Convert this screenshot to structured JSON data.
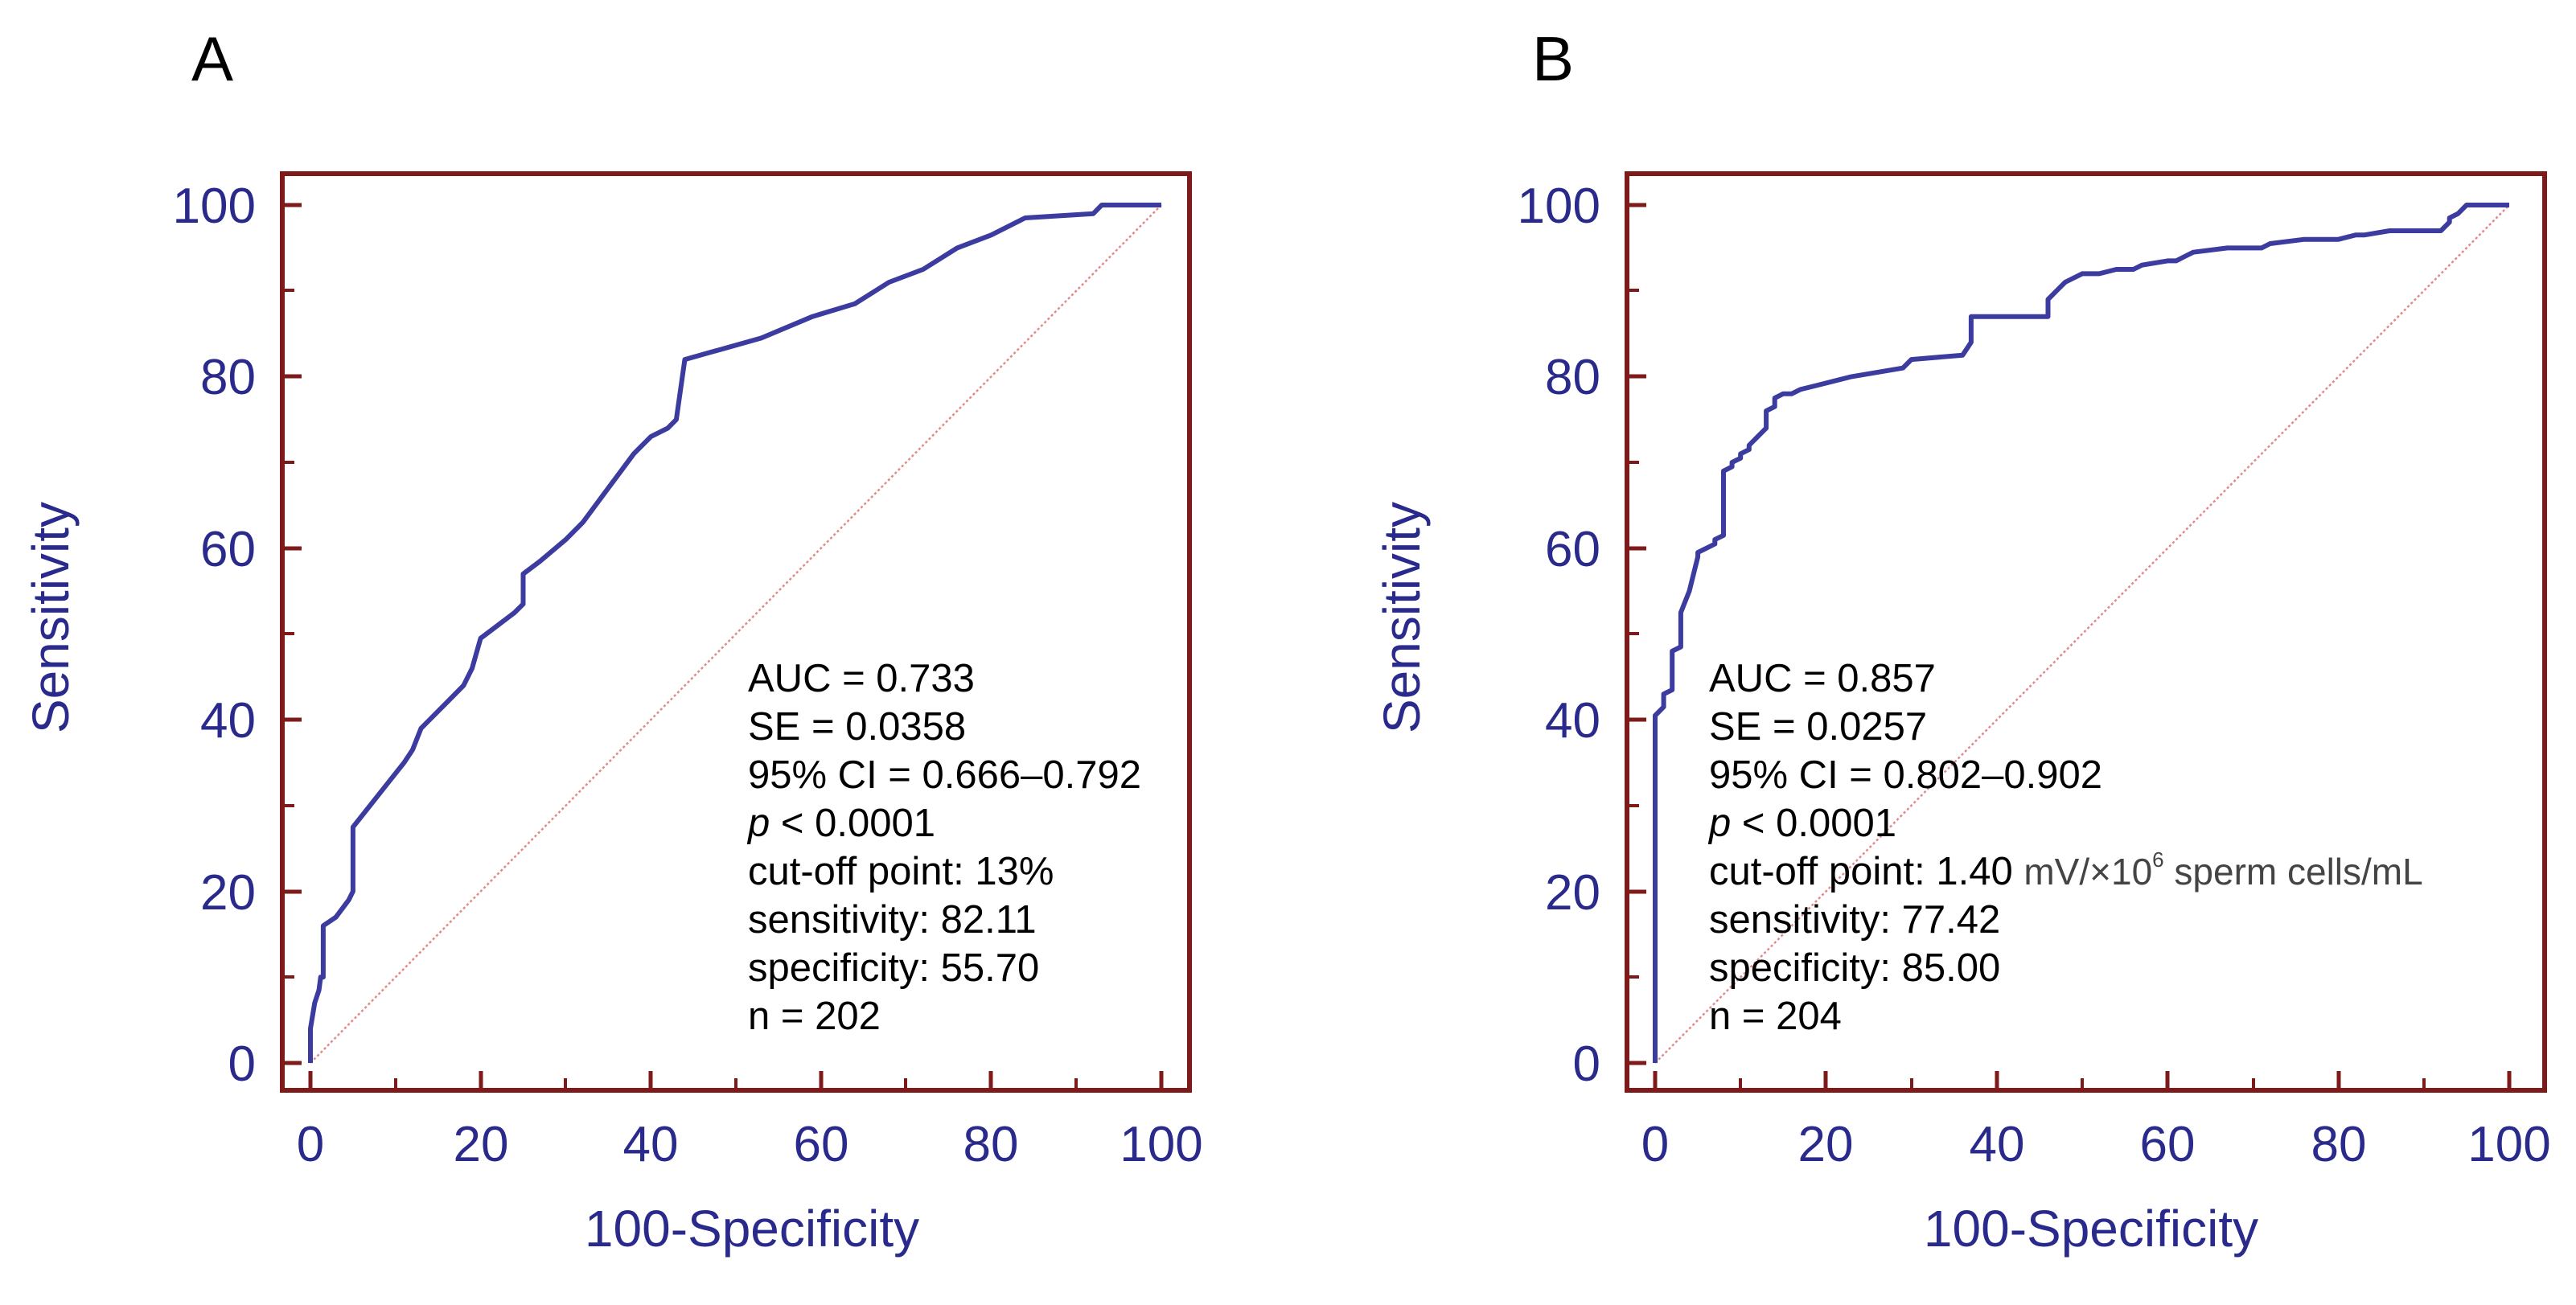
{
  "colors": {
    "frame": "#7f1a1a",
    "curve": "#3b3ba0",
    "diagonal": "#e08a8a",
    "text_axis": "#2a2a8c",
    "text_annot": "#000000"
  },
  "chart_data": [
    {
      "type": "line",
      "panel_label": "A",
      "xlabel": "100-Specificity",
      "ylabel": "Sensitivity",
      "xlim": [
        0,
        100
      ],
      "ylim": [
        0,
        100
      ],
      "xticks": [
        "0",
        "20",
        "40",
        "60",
        "80",
        "100"
      ],
      "yticks": [
        "0",
        "20",
        "40",
        "60",
        "80",
        "100"
      ],
      "series": [
        {
          "name": "ROC",
          "x": [
            0,
            0,
            0.5,
            1,
            1.2,
            1.5,
            1.5,
            3,
            4.5,
            5,
            5,
            7,
            9,
            11,
            12,
            13,
            14,
            16,
            18,
            19,
            20,
            22,
            24,
            25,
            25,
            27,
            30,
            32,
            35,
            38,
            40,
            42,
            43,
            44,
            53,
            59,
            64,
            68,
            72,
            76,
            80,
            84,
            92,
            93,
            97,
            100
          ],
          "y": [
            0,
            4,
            7,
            8.5,
            10,
            10,
            16,
            17,
            19,
            20,
            27.5,
            30,
            32.5,
            35,
            36.5,
            39,
            40,
            42,
            44,
            46,
            49.5,
            51,
            52.5,
            53.5,
            57,
            58.5,
            61,
            63,
            67,
            71,
            73,
            74,
            75,
            82,
            84.5,
            87,
            88.5,
            91,
            92.5,
            95,
            96.5,
            98.5,
            99,
            100,
            100,
            100
          ]
        },
        {
          "name": "reference",
          "x": [
            0,
            100
          ],
          "y": [
            0,
            100
          ]
        }
      ],
      "annotations": [
        "AUC = 0.733",
        "SE = 0.0358",
        "95% CI = 0.666–0.792",
        "p",
        " < 0.0001",
        "cut-off point: 13%",
        "sensitivity: 82.11",
        "specificity: 55.70",
        "n = 202"
      ]
    },
    {
      "type": "line",
      "panel_label": "B",
      "xlabel": "100-Specificity",
      "ylabel": "Sensitivity",
      "xlim": [
        0,
        100
      ],
      "ylim": [
        0,
        100
      ],
      "xticks": [
        "0",
        "20",
        "40",
        "60",
        "80",
        "100"
      ],
      "yticks": [
        "0",
        "20",
        "40",
        "60",
        "80",
        "100"
      ],
      "series": [
        {
          "name": "ROC",
          "x": [
            0,
            0,
            1,
            1,
            2,
            2,
            3,
            3,
            4,
            5,
            5,
            6,
            7,
            7,
            8,
            8,
            9,
            9,
            10,
            10,
            11,
            11,
            12,
            13,
            13,
            14,
            14,
            15,
            16,
            16,
            17,
            19,
            23,
            26,
            29,
            30,
            36,
            37,
            37,
            42,
            46,
            46,
            47,
            48,
            50,
            52,
            54,
            56,
            57,
            60,
            61,
            62,
            63,
            67,
            71,
            72,
            76,
            80,
            82,
            83,
            86,
            92,
            93,
            93,
            94,
            95,
            98,
            100
          ],
          "y": [
            0,
            40.5,
            41.5,
            43,
            43.5,
            48,
            48.5,
            52.5,
            55,
            59,
            59.5,
            60,
            60.5,
            61,
            61.5,
            69,
            69.5,
            70,
            70.5,
            71,
            71.5,
            72,
            73,
            74,
            76,
            76.5,
            77.5,
            78,
            78,
            78,
            78.5,
            79,
            80,
            80.5,
            81,
            82,
            82.5,
            84,
            87,
            87,
            87,
            89,
            90,
            91,
            92,
            92,
            92.5,
            92.5,
            93,
            93.5,
            93.5,
            94,
            94.5,
            95,
            95,
            95.5,
            96,
            96,
            96.5,
            96.5,
            97,
            97,
            98,
            98.5,
            99,
            100,
            100,
            100
          ]
        },
        {
          "name": "reference",
          "x": [
            0,
            100
          ],
          "y": [
            0,
            100
          ]
        }
      ],
      "annotations": [
        "AUC = 0.857",
        "SE = 0.0257",
        "95% CI = 0.802–0.902",
        "p",
        " < 0.0001",
        "cut-off point: 1.40 ",
        "mV/×10",
        "6",
        " sperm cells/mL",
        "sensitivity: 77.42",
        "specificity: 85.00",
        "n = 204"
      ]
    }
  ]
}
